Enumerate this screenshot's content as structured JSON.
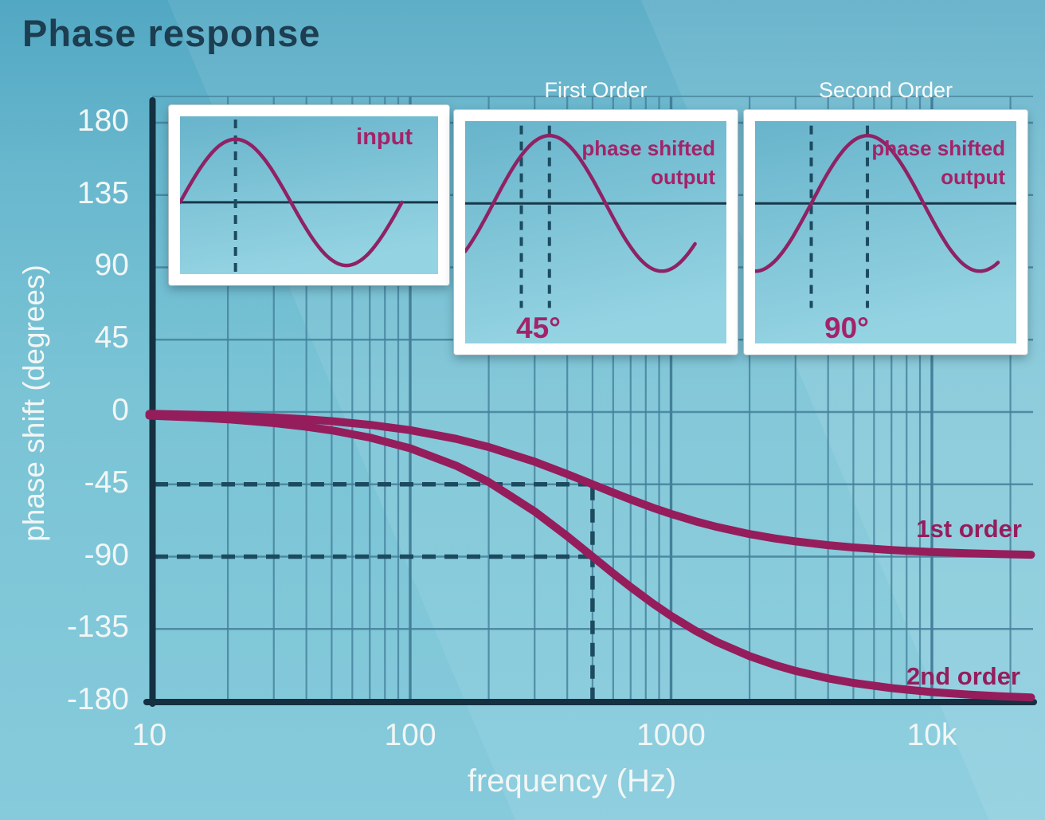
{
  "title": "Phase response",
  "colors": {
    "curve": "#951d5c",
    "inset_text": "#a32369",
    "dark_axis": "#143041",
    "dashed": "#1c4a5f",
    "grid": "#44809a",
    "text_light": "#f2f6f5",
    "title_text": "#1d3d50"
  },
  "y_axis": {
    "label": "phase shift (degrees)",
    "ticks": [
      {
        "label": "180",
        "value": 180
      },
      {
        "label": "135",
        "value": 135
      },
      {
        "label": "90",
        "value": 90
      },
      {
        "label": "45",
        "value": 45
      },
      {
        "label": "0",
        "value": 0
      },
      {
        "label": "-45",
        "value": -45
      },
      {
        "label": "-90",
        "value": -90
      },
      {
        "label": "-135",
        "value": -135
      },
      {
        "label": "-180",
        "value": -180
      }
    ]
  },
  "x_axis": {
    "label": "frequency (Hz)",
    "ticks": [
      {
        "label": "10",
        "value": 10
      },
      {
        "label": "100",
        "value": 100
      },
      {
        "label": "1000",
        "value": 1000
      },
      {
        "label": "10k",
        "value": 10000
      }
    ]
  },
  "curve_labels": {
    "first": "1st order",
    "second": "2nd order"
  },
  "insets": [
    {
      "name": "input",
      "title": "",
      "wave_label": "input",
      "shift_label": "",
      "shift_deg": 0
    },
    {
      "name": "first-order",
      "title": "First Order",
      "wave_label_line1": "phase shifted",
      "wave_label_line2": "output",
      "shift_label": "45°",
      "shift_deg": 45
    },
    {
      "name": "second-order",
      "title": "Second Order",
      "wave_label_line1": "phase shifted",
      "wave_label_line2": "output",
      "shift_label": "90°",
      "shift_deg": 90
    }
  ],
  "chart_data": {
    "type": "line",
    "title": "Phase response",
    "xlabel": "frequency (Hz)",
    "ylabel": "phase shift (degrees)",
    "x_scale": "log",
    "xlim": [
      10,
      24000
    ],
    "ylim": [
      -180,
      180
    ],
    "grid": true,
    "x": [
      10,
      15,
      20,
      30,
      40,
      50,
      70,
      100,
      150,
      200,
      300,
      400,
      500,
      600,
      700,
      850,
      1000,
      1250,
      1500,
      2000,
      2500,
      3000,
      4000,
      5000,
      7000,
      10000,
      14000,
      18000,
      22000,
      24000
    ],
    "series": [
      {
        "name": "1st order",
        "values": [
          -1.15,
          -1.72,
          -2.29,
          -3.43,
          -4.57,
          -5.71,
          -7.97,
          -11.31,
          -16.7,
          -21.8,
          -30.96,
          -38.66,
          -45,
          -50.19,
          -54.46,
          -59.53,
          -63.43,
          -68.2,
          -71.57,
          -75.96,
          -78.69,
          -80.54,
          -82.87,
          -84.29,
          -85.91,
          -87.14,
          -87.95,
          -88.41,
          -88.7,
          -88.81
        ]
      },
      {
        "name": "2nd order",
        "values": [
          -2.29,
          -3.43,
          -4.58,
          -6.87,
          -9.15,
          -11.42,
          -15.94,
          -22.62,
          -33.4,
          -43.6,
          -61.93,
          -77.32,
          -90,
          -100.39,
          -108.92,
          -119.05,
          -126.87,
          -136.4,
          -143.13,
          -151.93,
          -157.38,
          -161.08,
          -165.75,
          -168.58,
          -171.83,
          -174.27,
          -175.91,
          -176.82,
          -177.4,
          -177.61
        ]
      }
    ],
    "markers": {
      "cutoff_hz": 500,
      "dashed_phase_levels": [
        -45,
        -90
      ],
      "asymptotes": {
        "1st order": -90,
        "2nd order": -180
      }
    }
  }
}
